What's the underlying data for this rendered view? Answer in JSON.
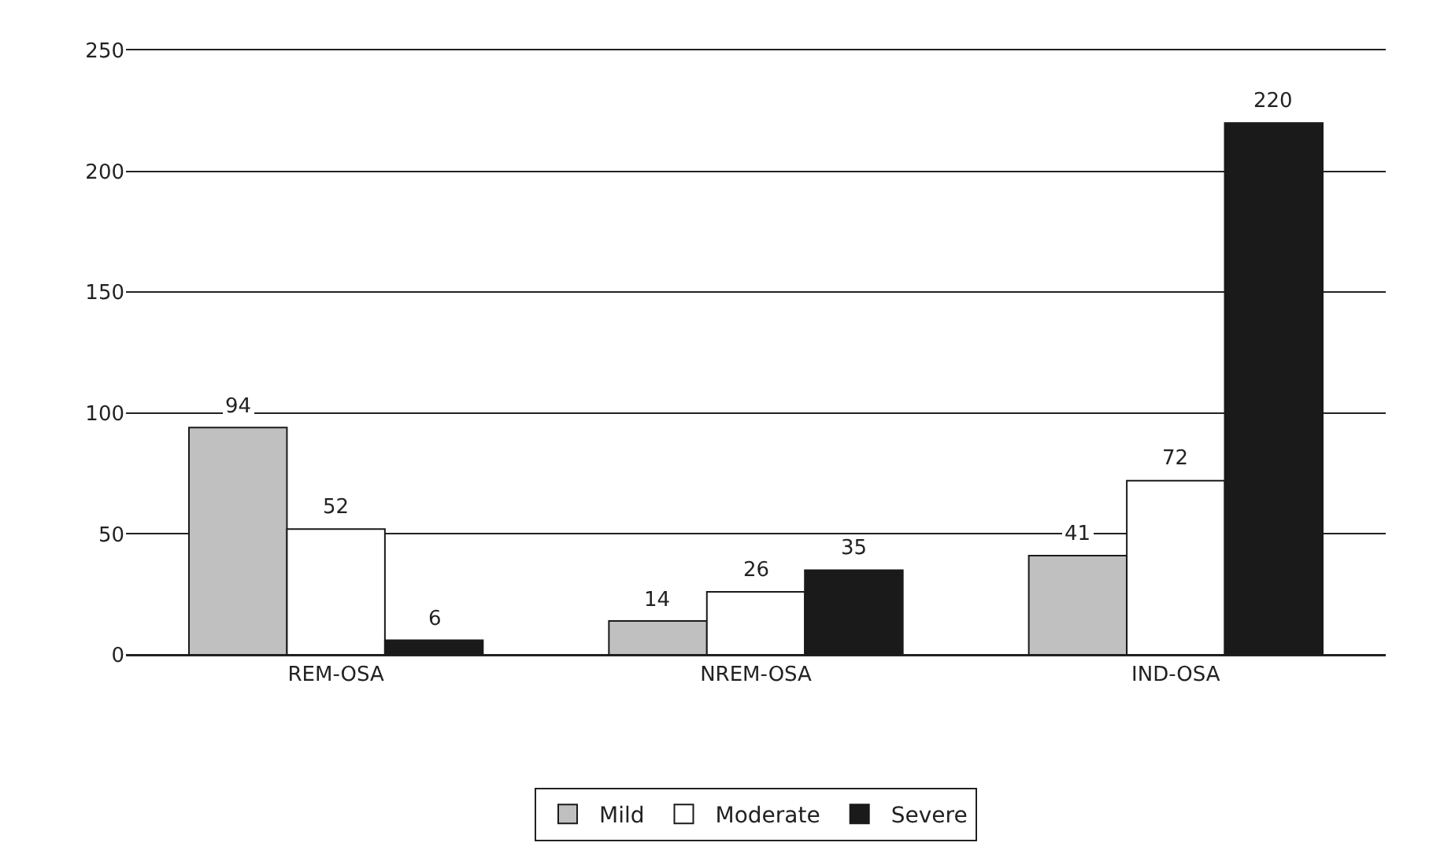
{
  "chart_data": {
    "type": "bar",
    "categories": [
      "REM-OSA",
      "NREM-OSA",
      "IND-OSA"
    ],
    "series": [
      {
        "name": "Mild",
        "color": "#c0c0c0",
        "values": [
          94,
          14,
          41
        ]
      },
      {
        "name": "Moderate",
        "color": "#ffffff",
        "values": [
          52,
          26,
          72
        ]
      },
      {
        "name": "Severe",
        "color": "#1a1a1a",
        "values": [
          6,
          35,
          220
        ]
      }
    ],
    "ylim": [
      0,
      250
    ],
    "yticks": [
      0,
      50,
      100,
      150,
      200,
      250
    ],
    "grid": "y",
    "legend": "bottom",
    "data_labels": true
  }
}
